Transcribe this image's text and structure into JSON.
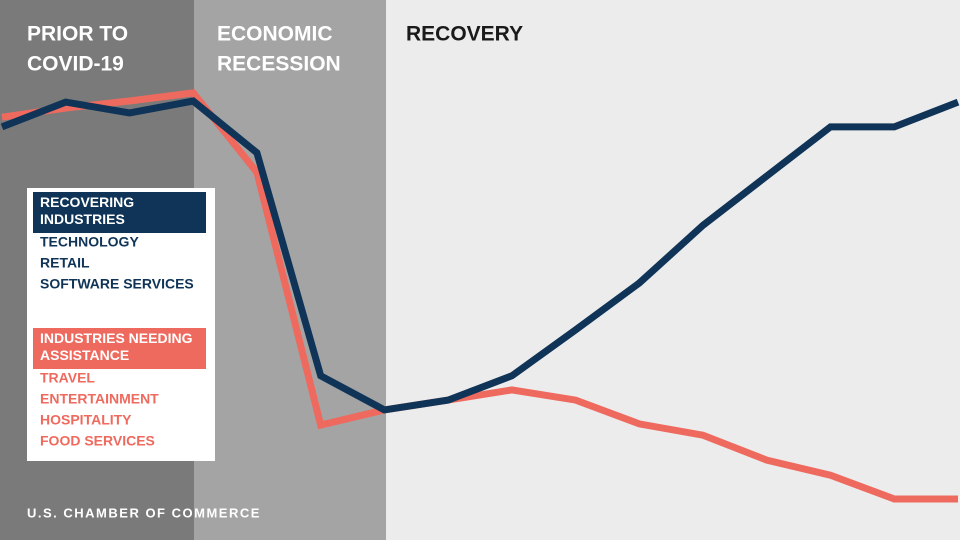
{
  "chart_data": {
    "type": "line",
    "phases": [
      {
        "label": [
          "PRIOR TO",
          "COVID-19"
        ]
      },
      {
        "label": [
          "ECONOMIC",
          "RECESSION"
        ]
      },
      {
        "label": [
          "RECOVERY"
        ]
      }
    ],
    "categories": [
      null,
      null,
      null,
      null,
      null,
      null,
      null,
      null,
      null,
      null,
      null,
      null,
      null,
      null,
      null,
      null
    ],
    "ylim": [
      0,
      100
    ],
    "series": [
      {
        "name": "RECOVERING INDUSTRIES",
        "color": "#0f3457",
        "items": [
          "TECHNOLOGY",
          "RETAIL",
          "SOFTWARE SERVICES"
        ],
        "values": [
          76.5,
          81.1,
          79.1,
          81.3,
          71.7,
          30.4,
          24.1,
          25.9,
          30.4,
          38.9,
          47.6,
          58.3,
          67.4,
          76.5,
          76.5,
          81.1
        ]
      },
      {
        "name": "INDUSTRIES NEEDING ASSISTANCE",
        "color": "#ef6a5e",
        "items": [
          "TRAVEL",
          "ENTERTAINMENT",
          "HOSPITALITY",
          "FOOD SERVICES"
        ],
        "values": [
          78.3,
          80,
          81.3,
          82.8,
          68.1,
          21.3,
          24.1,
          25.9,
          27.8,
          25.9,
          21.5,
          19.4,
          14.8,
          12,
          7.6,
          7.6
        ]
      }
    ],
    "source": "U.S. CHAMBER OF COMMERCE"
  }
}
